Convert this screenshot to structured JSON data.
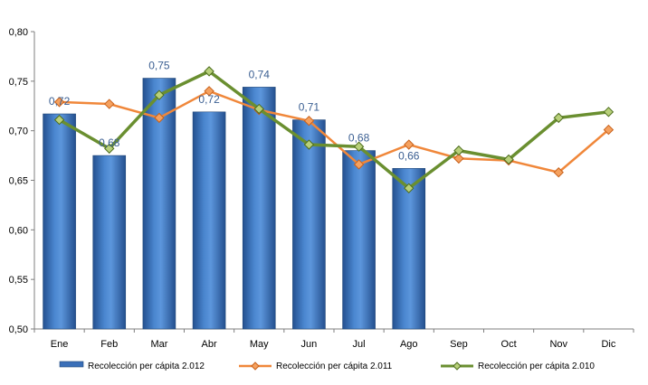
{
  "chart_data": {
    "type": "bar",
    "categories": [
      "Ene",
      "Feb",
      "Mar",
      "Abr",
      "May",
      "Jun",
      "Jul",
      "Ago",
      "Sep",
      "Oct",
      "Nov",
      "Dic"
    ],
    "ylim": [
      0.5,
      0.8
    ],
    "yticks": [
      "0,50",
      "0,55",
      "0,60",
      "0,65",
      "0,70",
      "0,75",
      "0,80"
    ],
    "grid": false,
    "legend_position": "bottom",
    "series": [
      {
        "name": "Recolección per cápita 2.012",
        "type": "bar",
        "color": "#3a6fb8",
        "values": [
          0.717,
          0.675,
          0.753,
          0.719,
          0.744,
          0.711,
          0.68,
          0.662,
          null,
          null,
          null,
          null
        ],
        "labels": [
          "0,72",
          "0,68",
          "0,75",
          "0,72",
          "0,74",
          "0,71",
          "0,68",
          "0,66",
          "",
          "",
          "",
          ""
        ]
      },
      {
        "name": "Recolección per cápita 2.011",
        "type": "line",
        "color": "#f0873a",
        "values": [
          0.729,
          0.727,
          0.713,
          0.74,
          0.721,
          0.71,
          0.666,
          0.686,
          0.672,
          0.67,
          0.658,
          0.701
        ]
      },
      {
        "name": "Recolección per cápita 2.010",
        "type": "line",
        "color": "#6a8f30",
        "values": [
          0.711,
          0.682,
          0.736,
          0.76,
          0.722,
          0.686,
          0.684,
          0.642,
          0.68,
          0.671,
          0.713,
          0.719
        ]
      }
    ]
  }
}
